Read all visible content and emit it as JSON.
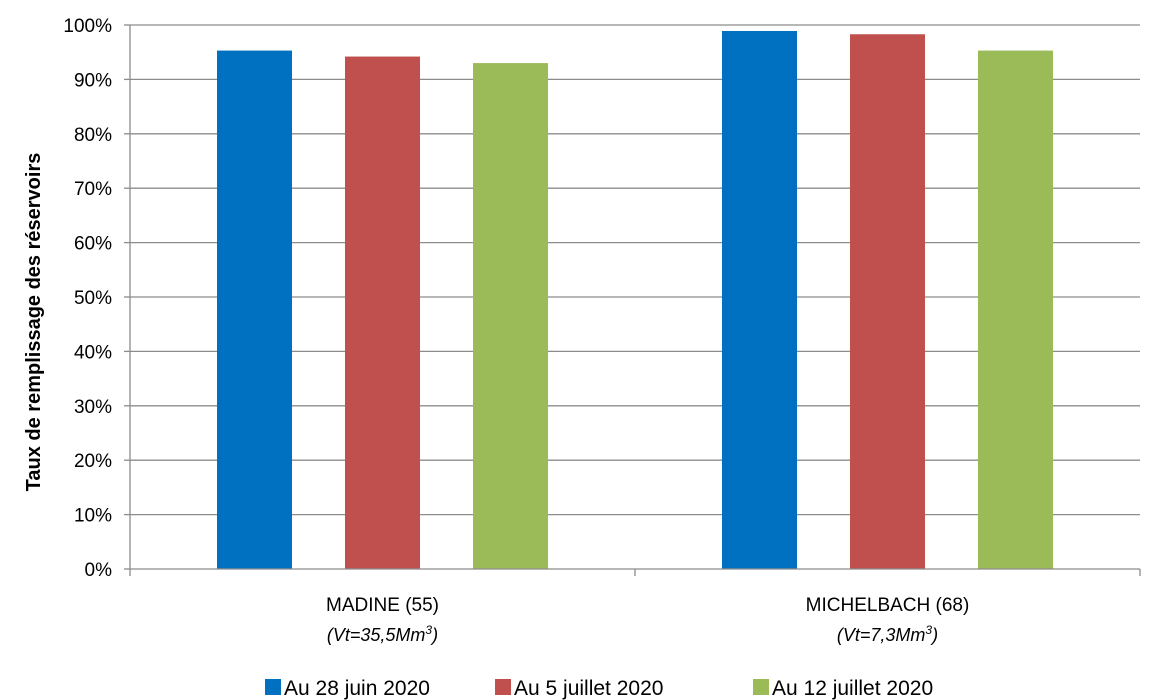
{
  "chart_data": {
    "type": "bar",
    "ylabel": "Taux de remplissage des réservoirs",
    "ylim": [
      0,
      100
    ],
    "y_ticks": [
      "0%",
      "10%",
      "20%",
      "30%",
      "40%",
      "50%",
      "60%",
      "70%",
      "80%",
      "90%",
      "100%"
    ],
    "grid": true,
    "legend_position": "bottom",
    "categories": [
      {
        "name": "MADINE (55)",
        "sub": "(Vt=35,5Mm",
        "sup": "3",
        "close": ")"
      },
      {
        "name": "MICHELBACH (68)",
        "sub": "(Vt=7,3Mm",
        "sup": "3",
        "close": ")"
      }
    ],
    "series": [
      {
        "name": "Au 28 juin 2020",
        "color": "#0070C0",
        "values": [
          95.3,
          98.9
        ]
      },
      {
        "name": "Au 5 juillet 2020",
        "color": "#C0504D",
        "values": [
          94.2,
          98.3
        ]
      },
      {
        "name": "Au 12 juillet 2020",
        "color": "#9BBB59",
        "values": [
          93.0,
          95.3
        ]
      }
    ]
  }
}
